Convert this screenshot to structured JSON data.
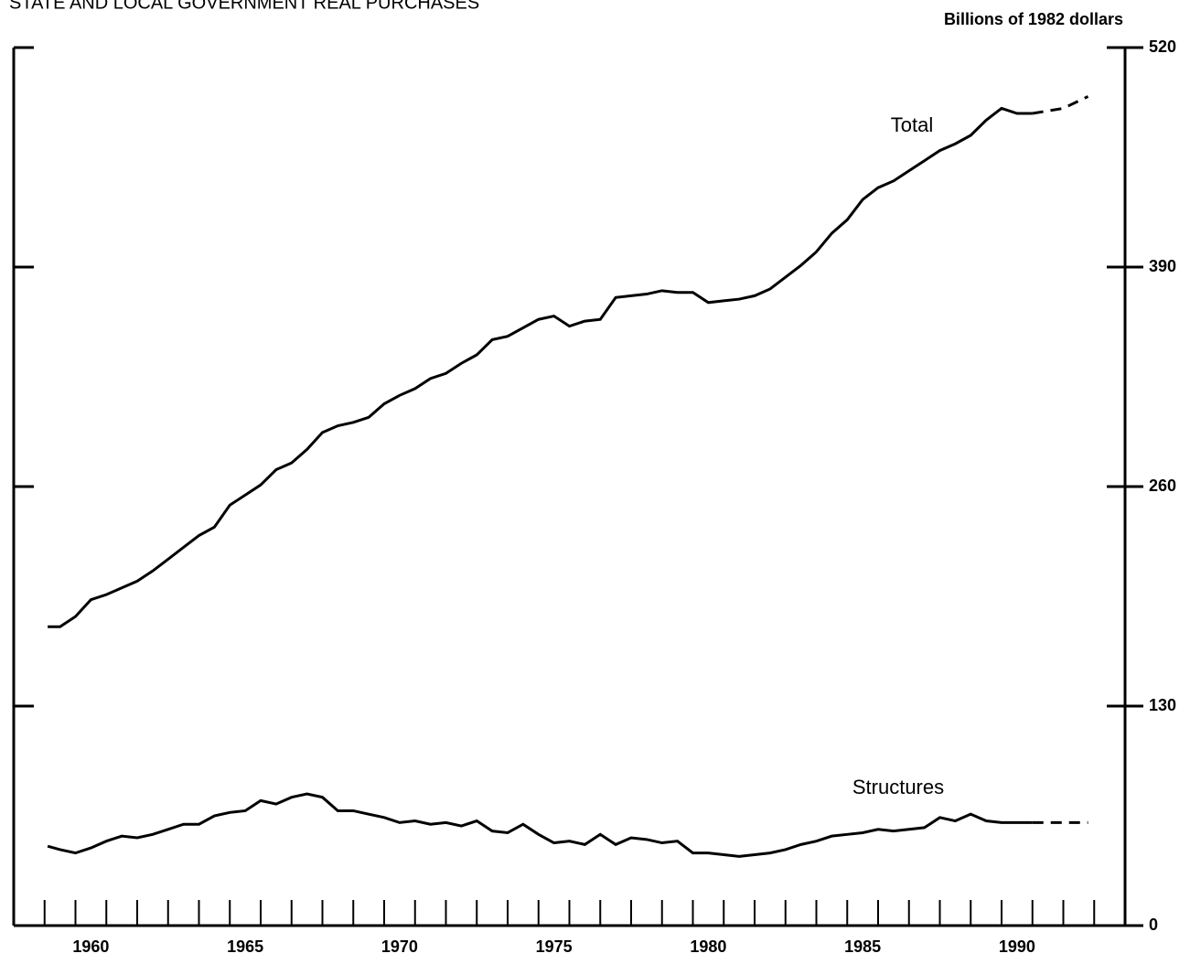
{
  "chart_data": {
    "type": "line",
    "title": "STATE AND LOCAL GOVERNMENT REAL PURCHASES",
    "y_axis_label": "Billions of 1982 dollars",
    "xlim": [
      1958,
      1994
    ],
    "ylim": [
      0,
      520
    ],
    "yticks": [
      0,
      130,
      260,
      390,
      520
    ],
    "xticks": [
      1959,
      1960,
      1961,
      1962,
      1963,
      1964,
      1965,
      1966,
      1967,
      1968,
      1969,
      1970,
      1971,
      1972,
      1973,
      1974,
      1975,
      1976,
      1977,
      1978,
      1979,
      1980,
      1981,
      1982,
      1983,
      1984,
      1985,
      1986,
      1987,
      1988,
      1989,
      1990,
      1991,
      1992,
      1993
    ],
    "xtick_labels": [
      {
        "value": 1960.5,
        "label": "1960"
      },
      {
        "value": 1965.5,
        "label": "1965"
      },
      {
        "value": 1970.5,
        "label": "1970"
      },
      {
        "value": 1975.5,
        "label": "1975"
      },
      {
        "value": 1980.5,
        "label": "1980"
      },
      {
        "value": 1985.5,
        "label": "1985"
      },
      {
        "value": 1990.5,
        "label": "1990"
      }
    ],
    "series": [
      {
        "name": "Total",
        "color": "#000000",
        "x": [
          1959.1,
          1959.5,
          1960,
          1960.5,
          1961,
          1961.5,
          1962,
          1962.5,
          1963,
          1963.5,
          1964,
          1964.5,
          1965,
          1965.5,
          1966,
          1966.5,
          1967,
          1967.5,
          1968,
          1968.5,
          1969,
          1969.5,
          1970,
          1970.5,
          1971,
          1971.5,
          1972,
          1972.5,
          1973,
          1973.5,
          1974,
          1974.5,
          1975,
          1975.5,
          1976,
          1976.5,
          1977,
          1977.5,
          1978,
          1978.5,
          1979,
          1979.5,
          1980,
          1980.5,
          1981,
          1981.5,
          1982,
          1982.5,
          1983,
          1983.5,
          1984,
          1984.5,
          1985,
          1985.5,
          1986,
          1986.5,
          1987,
          1987.5,
          1988,
          1988.5,
          1989,
          1989.5,
          1990,
          1990.5,
          1991
        ],
        "values": [
          177,
          177,
          183,
          193,
          196,
          200,
          204,
          210,
          217,
          224,
          231,
          236,
          249,
          255,
          261,
          270,
          274,
          282,
          292,
          296,
          298,
          301,
          309,
          314,
          318,
          324,
          327,
          333,
          338,
          347,
          349,
          354,
          359,
          361,
          355,
          358,
          359,
          372,
          373,
          374,
          376,
          375,
          375,
          369,
          370,
          371,
          373,
          377,
          384,
          391,
          399,
          410,
          418,
          430,
          437,
          441,
          447,
          453,
          459,
          463,
          468,
          477,
          484,
          481,
          481
        ],
        "projection": {
          "x": [
            1991,
            1992,
            1992.8
          ],
          "values": [
            481,
            484,
            491
          ]
        }
      },
      {
        "name": "Structures",
        "color": "#000000",
        "x": [
          1959.1,
          1959.5,
          1960,
          1960.5,
          1961,
          1961.5,
          1962,
          1962.5,
          1963,
          1963.5,
          1964,
          1964.5,
          1965,
          1965.5,
          1966,
          1966.5,
          1967,
          1967.5,
          1968,
          1968.5,
          1969,
          1969.5,
          1970,
          1970.5,
          1971,
          1971.5,
          1972,
          1972.5,
          1973,
          1973.5,
          1974,
          1974.5,
          1975,
          1975.5,
          1976,
          1976.5,
          1977,
          1977.5,
          1978,
          1978.5,
          1979,
          1979.5,
          1980,
          1980.5,
          1981,
          1981.5,
          1982,
          1982.5,
          1983,
          1983.5,
          1984,
          1984.5,
          1985,
          1985.5,
          1986,
          1986.5,
          1987,
          1987.5,
          1988,
          1988.5,
          1989,
          1989.5,
          1990,
          1990.5,
          1991
        ],
        "values": [
          47,
          45,
          43,
          46,
          50,
          53,
          52,
          54,
          57,
          60,
          60,
          65,
          67,
          68,
          74,
          72,
          76,
          78,
          76,
          68,
          68,
          66,
          64,
          61,
          62,
          60,
          61,
          59,
          62,
          56,
          55,
          60,
          54,
          49,
          50,
          48,
          54,
          48,
          52,
          51,
          49,
          50,
          43,
          43,
          42,
          41,
          42,
          43,
          45,
          48,
          50,
          53,
          54,
          55,
          57,
          56,
          57,
          58,
          64,
          62,
          66,
          62,
          61,
          61,
          61
        ],
        "projection": {
          "x": [
            1991,
            1992.8
          ],
          "values": [
            61,
            61
          ]
        }
      }
    ]
  }
}
